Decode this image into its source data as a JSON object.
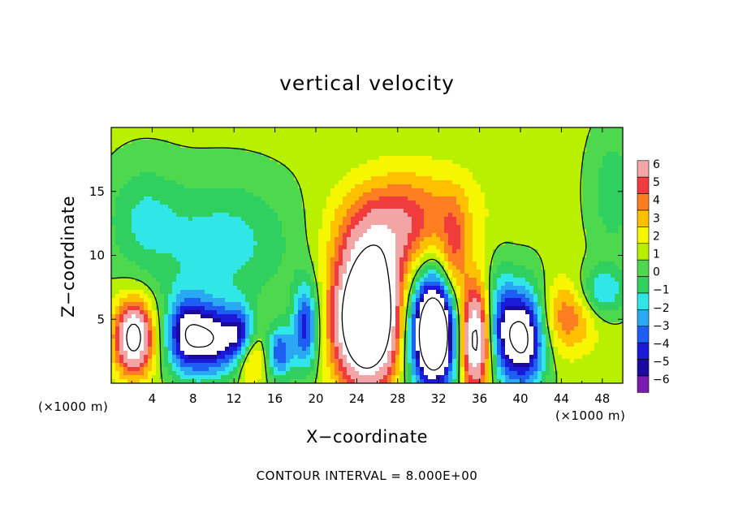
{
  "chart_data": {
    "type": "heatmap",
    "title": "vertical velocity",
    "xlabel": "X−coordinate",
    "ylabel": "Z−coordinate",
    "x_unit_label": "(×1000 m)",
    "x_unit_label_right": "(×1000 m)",
    "footnote": "CONTOUR INTERVAL = 8.000E+00",
    "xlim": [
      0,
      50
    ],
    "ylim": [
      0,
      20
    ],
    "x_ticks": [
      "4",
      "8",
      "12",
      "16",
      "20",
      "24",
      "28",
      "32",
      "36",
      "40",
      "44",
      "48"
    ],
    "y_ticks": [
      "5",
      "10",
      "15"
    ],
    "colorbar": {
      "labels": [
        "6",
        "5",
        "4",
        "3",
        "2",
        "1",
        "0",
        "−1",
        "−2",
        "−3",
        "−4",
        "−5",
        "−6"
      ],
      "colors": [
        "#f3a4a4",
        "#f03c3c",
        "#ff7e22",
        "#ffc000",
        "#f6f600",
        "#b8f000",
        "#4ed84e",
        "#30d060",
        "#30e6e6",
        "#2aa8f4",
        "#1e5ef2",
        "#1a1ad8",
        "#1a0a9e",
        "#7a1ab0"
      ],
      "over_color": "#ffffff",
      "under_color": "#ffffff"
    },
    "background_value": 0.3,
    "features": [
      {
        "x": 2.2,
        "z": 3.6,
        "amp": 9.0,
        "sx": 1.3,
        "sz": 2.0
      },
      {
        "x": 7.2,
        "z": 3.8,
        "amp": -6.5,
        "sx": 1.4,
        "sz": 2.2
      },
      {
        "x": 10.0,
        "z": 3.4,
        "amp": -7.0,
        "sx": 1.6,
        "sz": 2.0
      },
      {
        "x": 12.6,
        "z": 3.8,
        "amp": -5.0,
        "sx": 1.0,
        "sz": 1.6
      },
      {
        "x": 13.6,
        "z": 1.9,
        "amp": 3.0,
        "sx": 1.0,
        "sz": 1.4
      },
      {
        "x": 16.5,
        "z": 2.4,
        "amp": -5.0,
        "sx": 0.9,
        "sz": 1.5
      },
      {
        "x": 19.0,
        "z": 4.4,
        "amp": -5.8,
        "sx": 0.9,
        "sz": 2.4
      },
      {
        "x": 25.0,
        "z": 5.0,
        "amp": 14.0,
        "sx": 2.2,
        "sz": 3.5
      },
      {
        "x": 26.5,
        "z": 11.5,
        "amp": 4.0,
        "sx": 3.5,
        "sz": 2.8
      },
      {
        "x": 30.5,
        "z": 13.5,
        "amp": 2.2,
        "sx": 4.0,
        "sz": 2.5
      },
      {
        "x": 31.5,
        "z": 4.0,
        "amp": -13.0,
        "sx": 1.7,
        "sz": 3.2
      },
      {
        "x": 33.5,
        "z": 9.5,
        "amp": 3.5,
        "sx": 1.0,
        "sz": 3.0
      },
      {
        "x": 35.5,
        "z": 3.4,
        "amp": 9.0,
        "sx": 1.1,
        "sz": 3.0
      },
      {
        "x": 38.0,
        "z": 4.6,
        "amp": -4.0,
        "sx": 1.0,
        "sz": 3.0
      },
      {
        "x": 40.3,
        "z": 3.6,
        "amp": -9.0,
        "sx": 1.5,
        "sz": 2.8
      },
      {
        "x": 44.5,
        "z": 5.2,
        "amp": 3.5,
        "sx": 2.0,
        "sz": 2.0
      },
      {
        "x": 48.0,
        "z": 7.2,
        "amp": -3.5,
        "sx": 1.6,
        "sz": 1.4
      },
      {
        "x": 49.0,
        "z": 15.0,
        "amp": -2.0,
        "sx": 1.6,
        "sz": 3.5
      },
      {
        "x": 11.0,
        "z": 11.0,
        "amp": -2.8,
        "sx": 5.0,
        "sz": 3.5
      },
      {
        "x": 3.0,
        "z": 13.0,
        "amp": -2.0,
        "sx": 2.5,
        "sz": 3.0
      }
    ]
  }
}
